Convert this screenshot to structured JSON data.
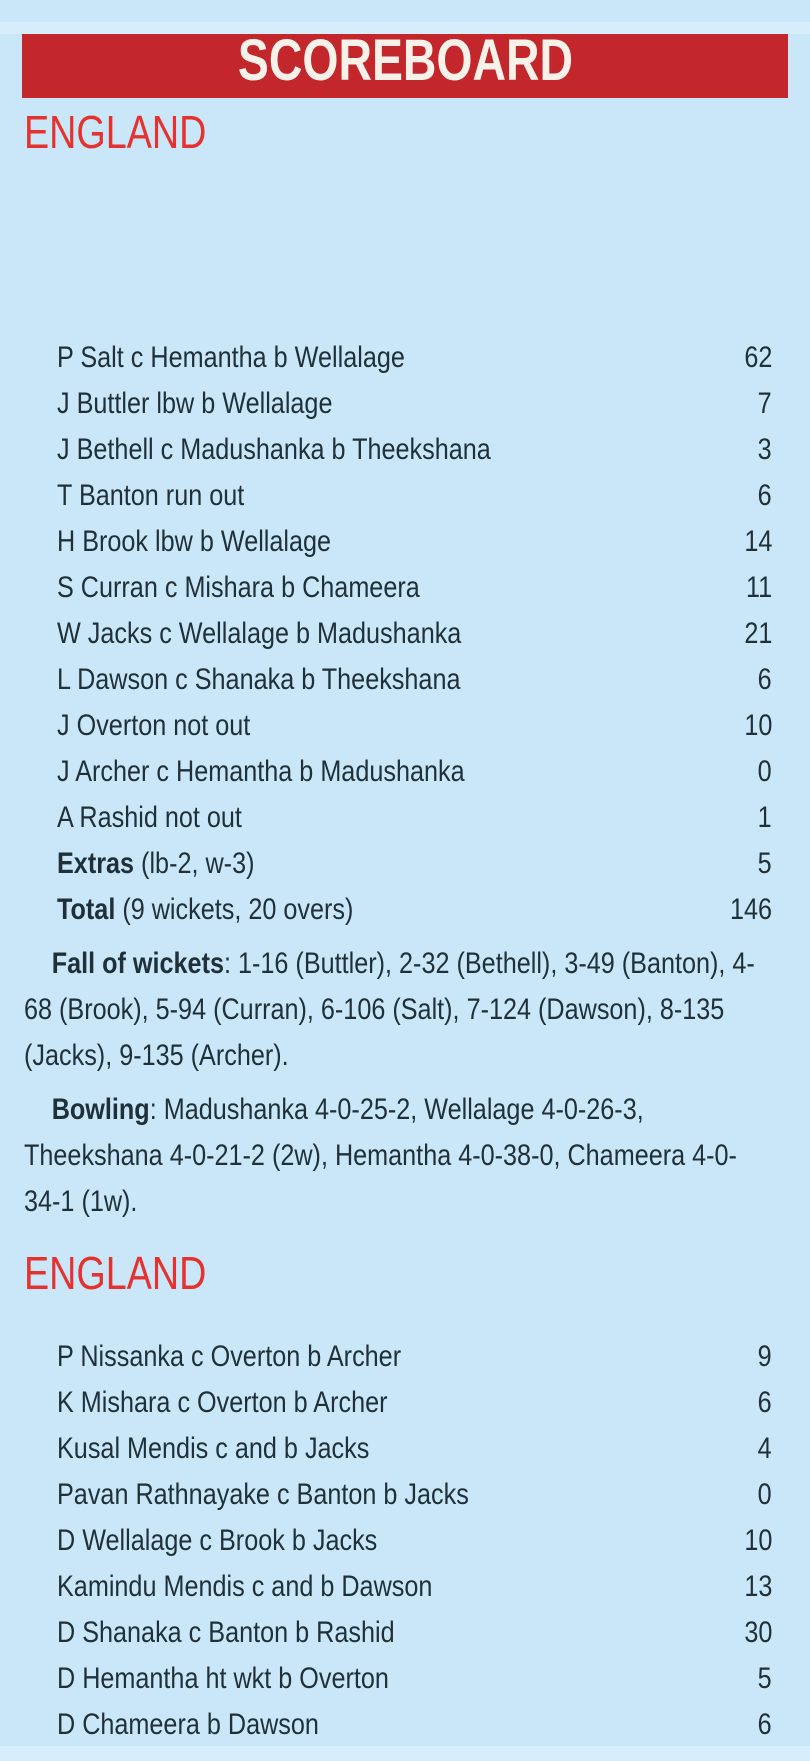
{
  "header": {
    "title": "SCOREBOARD"
  },
  "colors": {
    "background": "#c9e7f9",
    "banner_red": "#c3272c",
    "banner_text": "#f6f2e9",
    "heading_red": "#e5322f",
    "body_text": "#1f3038"
  },
  "innings": [
    {
      "team": "ENGLAND",
      "batting": [
        {
          "line": "P Salt c Hemantha b Wellalage",
          "runs": "62"
        },
        {
          "line": "J Buttler lbw b Wellalage",
          "runs": "7"
        },
        {
          "line": "J Bethell c Madushanka b Theekshana",
          "runs": "3"
        },
        {
          "line": "T Banton run out",
          "runs": "6"
        },
        {
          "line": "H Brook lbw b Wellalage",
          "runs": "14"
        },
        {
          "line": "S Curran c Mishara b Chameera",
          "runs": "11"
        },
        {
          "line": "W Jacks c Wellalage b Madushanka",
          "runs": "21"
        },
        {
          "line": "L Dawson c Shanaka b Theekshana",
          "runs": "6"
        },
        {
          "line": "J Overton not out",
          "runs": "10"
        },
        {
          "line": "J Archer c Hemantha b Madushanka",
          "runs": "0"
        },
        {
          "line": "A Rashid not out",
          "runs": "1"
        }
      ],
      "extras": {
        "label": "Extras",
        "detail": " (lb-2, w-3)",
        "runs": "5"
      },
      "total": {
        "label": "Total",
        "detail": " (9 wickets, 20 overs)",
        "runs": "146"
      },
      "fall_of_wickets": {
        "label": "Fall of wickets",
        "text": ": 1-16 (Buttler), 2-32 (Bethell), 3-49 (Banton), 4-68 (Brook), 5-94 (Curran), 6-106 (Salt), 7-124 (Dawson), 8-135 (Jacks), 9-135 (Archer)."
      },
      "bowling": {
        "label": "Bowling",
        "text": ": Madushanka 4-0-25-2, Wellalage 4-0-26-3, Theekshana 4-0-21-2 (2w), Hemantha 4-0-38-0, Chameera 4-0-34-1 (1w)."
      }
    },
    {
      "team": "ENGLAND",
      "batting": [
        {
          "line": "P Nissanka c Overton b Archer",
          "runs": "9"
        },
        {
          "line": "K Mishara c Overton b Archer",
          "runs": "6"
        },
        {
          "line": "Kusal Mendis c and b Jacks",
          "runs": "4"
        },
        {
          "line": "Pavan Rathnayake c Banton b Jacks",
          "runs": "0"
        },
        {
          "line": "D Wellalage c Brook b Jacks",
          "runs": "10"
        },
        {
          "line": "Kamindu Mendis c and b Dawson",
          "runs": "13"
        },
        {
          "line": "D Shanaka c Banton b Rashid",
          "runs": "30"
        },
        {
          "line": "D Hemantha ht wkt b Overton",
          "runs": "5"
        },
        {
          "line": "D Chameera b Dawson",
          "runs": "6"
        }
      ]
    }
  ]
}
